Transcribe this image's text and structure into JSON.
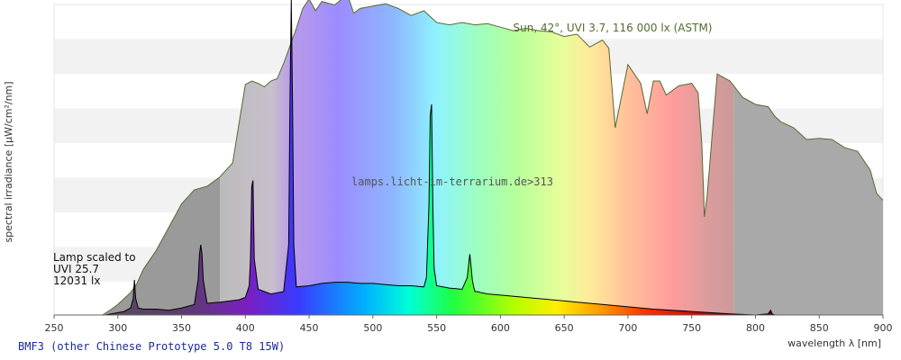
{
  "chart_data": {
    "type": "area",
    "title": "Sun, 42°, UVI 3.7, 116 000 lx (ASTM)",
    "caption": "BMF3 (other Chinese Prototype 5.0 T8 15W)",
    "watermark": "lamps.licht-im-terrarium.de>313",
    "xlabel": "wavelength λ [nm]",
    "ylabel": "spectral irradiance [µW/cm²/nm]",
    "xlim": [
      250,
      900
    ],
    "x_ticks": [
      "250",
      "300",
      "350",
      "400",
      "450",
      "500",
      "550",
      "600",
      "650",
      "700",
      "750",
      "800",
      "850",
      "900"
    ],
    "y_ticks_shown": false,
    "grid": "horizontal bands",
    "lamp_note": [
      "Lamp scaled to",
      "UVI 25.7",
      "12031 lx"
    ],
    "colors": {
      "sun_outline": "#556b2f",
      "lamp_line": "#000000",
      "band_light": "#f2f2f2",
      "uv_fill": "#999999",
      "ir_fill": "#a8a8a8",
      "sun_label": "#556b2f",
      "caption": "#1a2a99"
    },
    "series": [
      {
        "name": "Sun, 42°, UVI 3.7, 116 000 lx (ASTM)",
        "x": [
          288,
          295,
          300,
          305,
          310,
          315,
          320,
          330,
          340,
          350,
          360,
          370,
          380,
          390,
          400,
          405,
          410,
          415,
          420,
          425,
          430,
          440,
          445,
          450,
          455,
          460,
          470,
          480,
          485,
          490,
          500,
          510,
          520,
          530,
          540,
          550,
          560,
          570,
          580,
          590,
          600,
          610,
          620,
          630,
          640,
          650,
          660,
          670,
          680,
          685,
          690,
          700,
          710,
          715,
          720,
          725,
          730,
          740,
          750,
          755,
          758,
          760,
          762,
          765,
          770,
          780,
          790,
          800,
          810,
          815,
          820,
          830,
          840,
          850,
          860,
          870,
          880,
          890,
          895,
          900
        ],
        "y": [
          0,
          5,
          9,
          14,
          19,
          27,
          39,
          55,
          75,
          95,
          107,
          110,
          118,
          130,
          197,
          200,
          198,
          195,
          200,
          202,
          215,
          245,
          262,
          270,
          260,
          268,
          265,
          274,
          258,
          262,
          264,
          266,
          262,
          256,
          260,
          250,
          248,
          250,
          248,
          249,
          246,
          243,
          245,
          243,
          242,
          238,
          240,
          229,
          235,
          228,
          160,
          214,
          198,
          172,
          200,
          200,
          188,
          196,
          198,
          190,
          145,
          84,
          100,
          140,
          206,
          200,
          186,
          180,
          178,
          170,
          165,
          160,
          150,
          151,
          150,
          143,
          140,
          124,
          104,
          98
        ]
      },
      {
        "name": "BMF3 (other Chinese Prototype 5.0 T8 15W)",
        "x": [
          250,
          280,
          290,
          300,
          305,
          310,
          312,
          313,
          314,
          316,
          320,
          330,
          340,
          350,
          360,
          363,
          364,
          365,
          366,
          367,
          370,
          380,
          395,
          400,
          403,
          404,
          405,
          406,
          407,
          410,
          420,
          430,
          434,
          435,
          436,
          437,
          438,
          440,
          450,
          460,
          470,
          480,
          490,
          500,
          510,
          520,
          530,
          540,
          542,
          544,
          545,
          546,
          547,
          548,
          550,
          555,
          560,
          570,
          574,
          576,
          577,
          578,
          579,
          580,
          582,
          585,
          590,
          600,
          620,
          650,
          680,
          700,
          720,
          750,
          780,
          800,
          810,
          812,
          813,
          815,
          830
        ],
        "y": [
          0,
          0,
          0,
          2,
          3,
          6,
          14,
          30,
          14,
          6,
          5,
          5,
          4,
          6,
          9,
          30,
          52,
          60,
          52,
          30,
          10,
          11,
          13,
          15,
          25,
          48,
          110,
          115,
          48,
          22,
          18,
          20,
          60,
          180,
          270,
          180,
          60,
          24,
          25,
          27,
          28,
          28,
          27,
          27,
          26,
          25,
          25,
          24,
          32,
          95,
          170,
          180,
          95,
          40,
          25,
          24,
          23,
          22,
          32,
          52,
          42,
          30,
          24,
          20,
          20,
          19,
          18,
          17,
          15,
          12,
          9,
          7,
          5,
          3,
          1,
          0,
          1,
          4,
          1,
          0,
          0
        ]
      }
    ]
  }
}
